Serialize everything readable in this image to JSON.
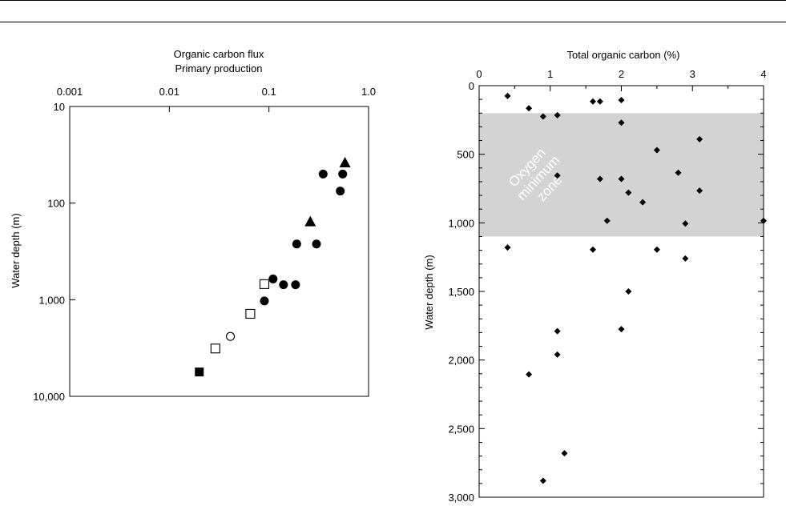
{
  "chart_data": [
    {
      "type": "scatter",
      "title": "Organic carbon flux",
      "subtitle": "Primary production",
      "xlabel": "",
      "ylabel": "Water depth (m)",
      "x_scale": "log",
      "y_scale": "log",
      "x_axis_position": "top",
      "y_inverted": true,
      "xlim": [
        0.001,
        1.0
      ],
      "ylim": [
        10,
        10000
      ],
      "x_tick_labels": [
        "0.001",
        "0.01",
        "0.1",
        "1.0"
      ],
      "y_tick_labels": [
        "10",
        "100",
        "1,000",
        "10,000"
      ],
      "grid": false,
      "legend": "none",
      "series": [
        {
          "marker": "filled-circle",
          "points": [
            {
              "x": 0.35,
              "y": 50
            },
            {
              "x": 0.55,
              "y": 50
            },
            {
              "x": 0.52,
              "y": 75
            },
            {
              "x": 0.19,
              "y": 265
            },
            {
              "x": 0.3,
              "y": 265
            },
            {
              "x": 0.11,
              "y": 610
            },
            {
              "x": 0.14,
              "y": 700
            },
            {
              "x": 0.185,
              "y": 700
            },
            {
              "x": 0.09,
              "y": 1030
            }
          ]
        },
        {
          "marker": "filled-triangle",
          "points": [
            {
              "x": 0.58,
              "y": 38
            },
            {
              "x": 0.26,
              "y": 155
            }
          ]
        },
        {
          "marker": "open-square",
          "points": [
            {
              "x": 0.09,
              "y": 690
            },
            {
              "x": 0.065,
              "y": 1400
            },
            {
              "x": 0.029,
              "y": 3200
            }
          ]
        },
        {
          "marker": "open-circle",
          "points": [
            {
              "x": 0.041,
              "y": 2400
            }
          ]
        },
        {
          "marker": "filled-square",
          "points": [
            {
              "x": 0.02,
              "y": 5600
            }
          ]
        }
      ]
    },
    {
      "type": "scatter",
      "title": "Total organic carbon (%)",
      "xlabel": "",
      "ylabel": "Water depth (m)",
      "x_axis_position": "top",
      "y_inverted": true,
      "xlim": [
        0,
        4
      ],
      "ylim": [
        0,
        3000
      ],
      "x_tick_labels": [
        "0",
        "1",
        "2",
        "3",
        "4"
      ],
      "y_tick_labels": [
        "0",
        "500",
        "1,000",
        "1,500",
        "2,000",
        "2,500",
        "3,000"
      ],
      "grid": false,
      "legend": "none",
      "shaded_band": {
        "label_lines": [
          "Oxygen",
          "minimum",
          "zone"
        ],
        "y_from": 200,
        "y_to": 1100,
        "color": "#d3d3d3"
      },
      "points": [
        {
          "x": 0.4,
          "y": 75
        },
        {
          "x": 0.7,
          "y": 165
        },
        {
          "x": 0.9,
          "y": 225
        },
        {
          "x": 1.1,
          "y": 215
        },
        {
          "x": 1.6,
          "y": 115
        },
        {
          "x": 1.7,
          "y": 115
        },
        {
          "x": 2.0,
          "y": 105
        },
        {
          "x": 2.0,
          "y": 270
        },
        {
          "x": 3.1,
          "y": 390
        },
        {
          "x": 2.5,
          "y": 470
        },
        {
          "x": 2.8,
          "y": 635
        },
        {
          "x": 1.1,
          "y": 655
        },
        {
          "x": 1.7,
          "y": 680
        },
        {
          "x": 2.0,
          "y": 680
        },
        {
          "x": 3.1,
          "y": 765
        },
        {
          "x": 2.1,
          "y": 780
        },
        {
          "x": 2.3,
          "y": 850
        },
        {
          "x": 1.8,
          "y": 985
        },
        {
          "x": 2.9,
          "y": 1005
        },
        {
          "x": 4.0,
          "y": 985
        },
        {
          "x": 0.4,
          "y": 1180
        },
        {
          "x": 1.6,
          "y": 1195
        },
        {
          "x": 2.5,
          "y": 1195
        },
        {
          "x": 2.9,
          "y": 1260
        },
        {
          "x": 2.1,
          "y": 1500
        },
        {
          "x": 1.1,
          "y": 1790
        },
        {
          "x": 2.0,
          "y": 1775
        },
        {
          "x": 1.1,
          "y": 1960
        },
        {
          "x": 0.7,
          "y": 2105
        },
        {
          "x": 1.2,
          "y": 2680
        },
        {
          "x": 0.9,
          "y": 2880
        }
      ]
    }
  ]
}
